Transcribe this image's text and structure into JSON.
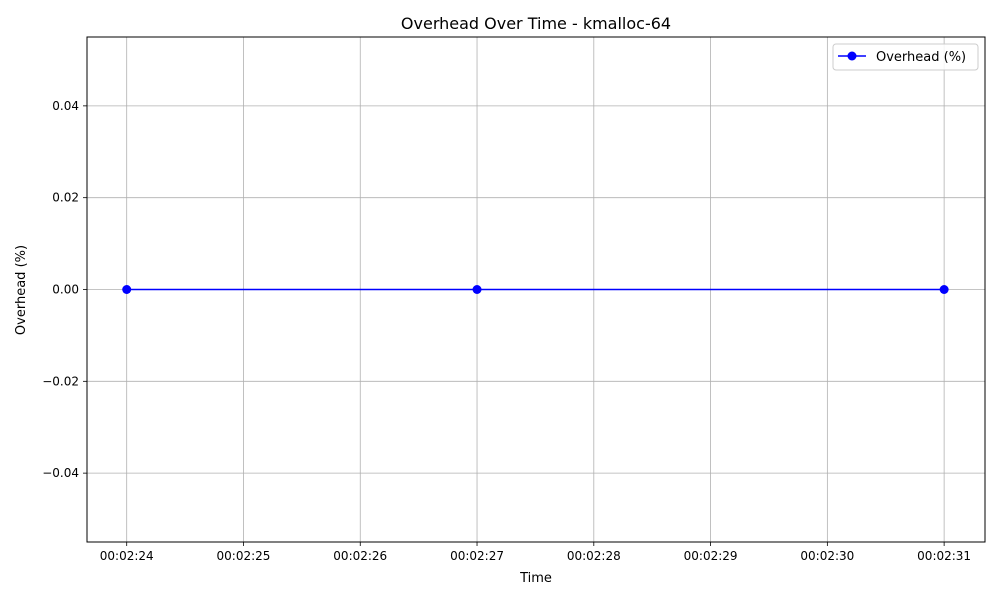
{
  "chart_data": {
    "type": "line",
    "title": "Overhead Over Time - kmalloc-64",
    "xlabel": "Time",
    "ylabel": "Overhead (%)",
    "x_ticks": [
      "00:02:24",
      "00:02:25",
      "00:02:26",
      "00:02:27",
      "00:02:28",
      "00:02:29",
      "00:02:30",
      "00:02:31"
    ],
    "y_ticks": [
      "0.04",
      "0.02",
      "0.00",
      "−0.02",
      "−0.04"
    ],
    "xlim": [
      "00:02:23.66",
      "00:02:31.35"
    ],
    "ylim": [
      -0.055,
      0.055
    ],
    "grid": true,
    "legend_position": "top-right",
    "series": [
      {
        "name": "Overhead (%)",
        "color": "#0000ff",
        "marker": "circle",
        "x": [
          "00:02:24",
          "00:02:27",
          "00:02:31"
        ],
        "y": [
          0.0,
          0.0,
          0.0
        ]
      }
    ]
  }
}
